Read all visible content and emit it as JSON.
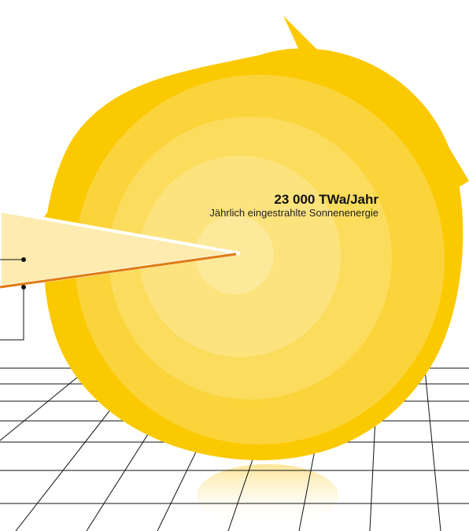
{
  "annotation": {
    "value": "23 000 TWa/Jahr",
    "caption": "Jährlich eingestrahlte Sonnenenergie"
  }
}
